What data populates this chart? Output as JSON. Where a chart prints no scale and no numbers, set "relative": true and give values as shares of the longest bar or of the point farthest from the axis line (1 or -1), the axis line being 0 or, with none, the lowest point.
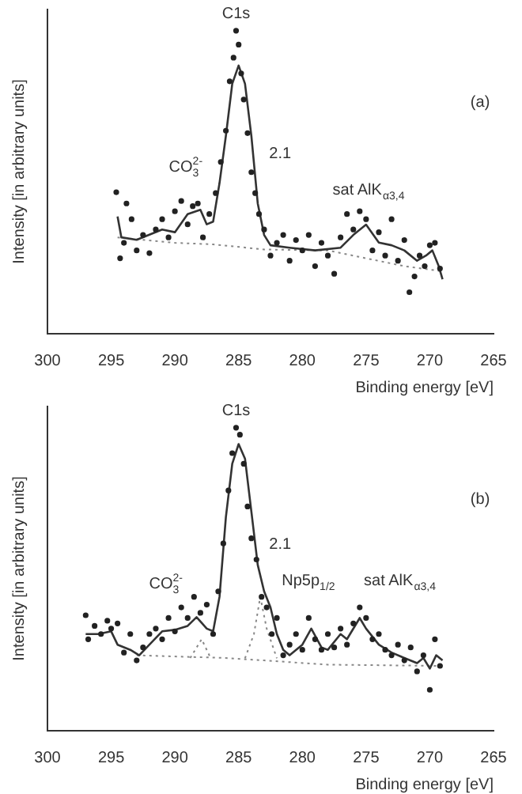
{
  "chart_data": [
    {
      "type": "scatter",
      "relative": true,
      "xlabel": "Binding energy [eV]",
      "ylabel": "Intensity [in arbitrary units]",
      "xlim": [
        300,
        265
      ],
      "xticks": [
        300,
        295,
        290,
        285,
        280,
        275,
        270,
        265
      ],
      "tick_labels": "x",
      "grid": false,
      "legend": false,
      "annotations": [
        {
          "text": "C1s",
          "x": 285.2,
          "y": 1
        },
        "CO$_{3}$$^{2-}$",
        {
          "text": "2.1",
          "x": 283.6,
          "y": 0.6
        },
        "sat AlK$_{α3,4}$",
        "(a)"
      ],
      "series": [
        {
          "type": "scatter",
          "color": "#222222",
          "marker": "circle",
          "x": [
            294.6,
            294.3,
            294.0,
            293.8,
            293.4,
            293.0,
            292.5,
            292.0,
            291.5,
            291.0,
            290.5,
            290.0,
            289.5,
            289.0,
            288.6,
            288.2,
            287.8,
            287.3,
            286.8,
            286.4,
            286.0,
            285.7,
            285.4,
            285.2,
            285.0,
            284.8,
            284.6,
            284.3,
            284.0,
            283.7,
            283.4,
            283.0,
            282.5,
            282.0,
            281.5,
            281.0,
            280.5,
            280.0,
            279.5,
            279.0,
            278.5,
            278.0,
            277.5,
            277.0,
            276.5,
            276.0,
            275.5,
            275.0,
            274.5,
            274.0,
            273.5,
            273.0,
            272.5,
            272.0,
            271.6,
            271.2,
            270.8,
            270.4,
            270.0,
            269.6,
            269.2
          ],
          "values": [
            0.467,
            0.249,
            0.3,
            0.43,
            0.378,
            0.275,
            0.326,
            0.266,
            0.344,
            0.378,
            0.318,
            0.404,
            0.438,
            0.361,
            0.421,
            0.43,
            0.318,
            0.395,
            0.464,
            0.567,
            0.67,
            0.833,
            0.911,
            1,
            0.954,
            0.859,
            0.773,
            0.662,
            0.533,
            0.464,
            0.395,
            0.344,
            0.258,
            0.3,
            0.326,
            0.241,
            0.309,
            0.275,
            0.326,
            0.223,
            0.3,
            0.258,
            0.198,
            0.318,
            0.395,
            0.344,
            0.404,
            0.378,
            0.275,
            0.335,
            0.258,
            0.378,
            0.241,
            0.309,
            0.137,
            0.189,
            0.258,
            0.223,
            0.292,
            0.3,
            0.215
          ]
        },
        {
          "type": "line",
          "color": "#333333",
          "line_style": "solid",
          "marker": "none",
          "x": [
            294.5,
            294.2,
            293,
            291,
            290,
            289,
            288,
            287.5,
            287,
            286.5,
            286,
            285.5,
            285,
            284.5,
            284,
            283.5,
            283,
            282.5,
            281,
            279,
            277,
            276,
            275,
            274,
            273,
            272,
            271,
            270.3,
            269.8,
            269.3,
            269
          ],
          "values": [
            0.387,
            0.318,
            0.31,
            0.344,
            0.335,
            0.395,
            0.409,
            0.361,
            0.37,
            0.497,
            0.653,
            0.825,
            0.885,
            0.825,
            0.653,
            0.43,
            0.326,
            0.292,
            0.284,
            0.275,
            0.284,
            0.326,
            0.36,
            0.301,
            0.292,
            0.275,
            0.241,
            0.258,
            0.275,
            0.223,
            0.18
          ]
        },
        {
          "type": "line",
          "color": "#888888",
          "line_style": "dotted",
          "marker": "none",
          "x": [
            294.5,
            290,
            287,
            283,
            278,
            272,
            269
          ],
          "values": [
            0.318,
            0.3,
            0.295,
            0.278,
            0.275,
            0.223,
            0.206
          ]
        }
      ]
    },
    {
      "type": "scatter",
      "relative": true,
      "xlabel": "Binding energy [eV]",
      "ylabel": "Intensity [in arbitrary units]",
      "xlim": [
        300,
        265
      ],
      "xticks": [
        300,
        295,
        290,
        285,
        280,
        275,
        270,
        265
      ],
      "tick_labels": "x",
      "grid": false,
      "legend": false,
      "annotations": [
        {
          "text": "C1s",
          "x": 285.2,
          "y": 1
        },
        {
          "text": "CO$_{3}$$^{2-}$",
          "x": 288.4,
          "y": 0.46
        },
        {
          "text": "2.1",
          "x": 283.6,
          "y": 0.62
        },
        "Np5p$_{1/2}$",
        "sat AlK$_{α3,4}$",
        "(b)"
      ],
      "series": [
        {
          "type": "scatter",
          "color": "#222222",
          "marker": "circle",
          "x": [
            297.0,
            296.8,
            296.3,
            295.8,
            295.3,
            295.0,
            294.5,
            294.0,
            293.5,
            293.0,
            292.5,
            292.0,
            291.5,
            291.0,
            290.5,
            290.0,
            289.5,
            289.0,
            288.5,
            288.0,
            287.5,
            287.0,
            286.6,
            286.2,
            285.8,
            285.5,
            285.2,
            284.9,
            284.6,
            284.3,
            284.0,
            283.6,
            283.2,
            282.8,
            282.4,
            282.0,
            281.5,
            281.0,
            280.5,
            280.0,
            279.5,
            279.0,
            278.5,
            278.0,
            277.5,
            277.0,
            276.5,
            276.0,
            275.5,
            275.0,
            274.5,
            274.0,
            273.5,
            273.0,
            272.5,
            272.0,
            271.5,
            271.0,
            270.5,
            270.0,
            269.6,
            269.2
          ],
          "values": [
            0.381,
            0.302,
            0.346,
            0.319,
            0.363,
            0.337,
            0.354,
            0.258,
            0.319,
            0.232,
            0.275,
            0.319,
            0.337,
            0.302,
            0.372,
            0.328,
            0.407,
            0.372,
            0.442,
            0.389,
            0.416,
            0.319,
            0.46,
            0.618,
            0.793,
            0.916,
            1,
            0.977,
            0.881,
            0.74,
            0.635,
            0.565,
            0.442,
            0.407,
            0.319,
            0.372,
            0.249,
            0.284,
            0.319,
            0.267,
            0.372,
            0.302,
            0.267,
            0.319,
            0.275,
            0.337,
            0.284,
            0.354,
            0.407,
            0.372,
            0.302,
            0.319,
            0.267,
            0.249,
            0.284,
            0.232,
            0.275,
            0.196,
            0.249,
            0.135,
            0.302,
            0.214
          ]
        },
        {
          "type": "line",
          "color": "#333333",
          "line_style": "solid",
          "marker": "none",
          "x": [
            297,
            296,
            295,
            294.5,
            293.5,
            292.8,
            292,
            291,
            290,
            289,
            288.3,
            287.5,
            287,
            286.5,
            286,
            285.5,
            285,
            284.5,
            284,
            283.5,
            283,
            282.5,
            282,
            281.5,
            281,
            280,
            279.3,
            278.5,
            278,
            277,
            276.5,
            275.5,
            275,
            274,
            273,
            272,
            271,
            270.5,
            270,
            269.5,
            269
          ],
          "values": [
            0.319,
            0.319,
            0.328,
            0.284,
            0.267,
            0.249,
            0.284,
            0.328,
            0.333,
            0.346,
            0.375,
            0.337,
            0.328,
            0.442,
            0.705,
            0.881,
            0.946,
            0.898,
            0.723,
            0.547,
            0.46,
            0.407,
            0.319,
            0.267,
            0.249,
            0.284,
            0.337,
            0.275,
            0.267,
            0.319,
            0.302,
            0.372,
            0.337,
            0.284,
            0.258,
            0.24,
            0.223,
            0.24,
            0.205,
            0.249,
            0.232
          ]
        },
        {
          "type": "line",
          "color": "#888888",
          "line_style": "dotted",
          "marker": "none",
          "x": [
            293,
            286,
            283,
            278,
            269
          ],
          "values": [
            0.249,
            0.24,
            0.232,
            0.218,
            0.214
          ]
        },
        {
          "type": "line",
          "color": "#888888",
          "line_style": "dotted",
          "marker": "none",
          "x": [
            284.5,
            283.8,
            283.3,
            282.8,
            282
          ],
          "values": [
            0.239,
            0.319,
            0.442,
            0.337,
            0.239
          ]
        },
        {
          "type": "line",
          "color": "#888888",
          "line_style": "dotted",
          "marker": "none",
          "x": [
            288.8,
            287.9,
            287.2
          ],
          "values": [
            0.24,
            0.302,
            0.24
          ]
        }
      ]
    }
  ]
}
